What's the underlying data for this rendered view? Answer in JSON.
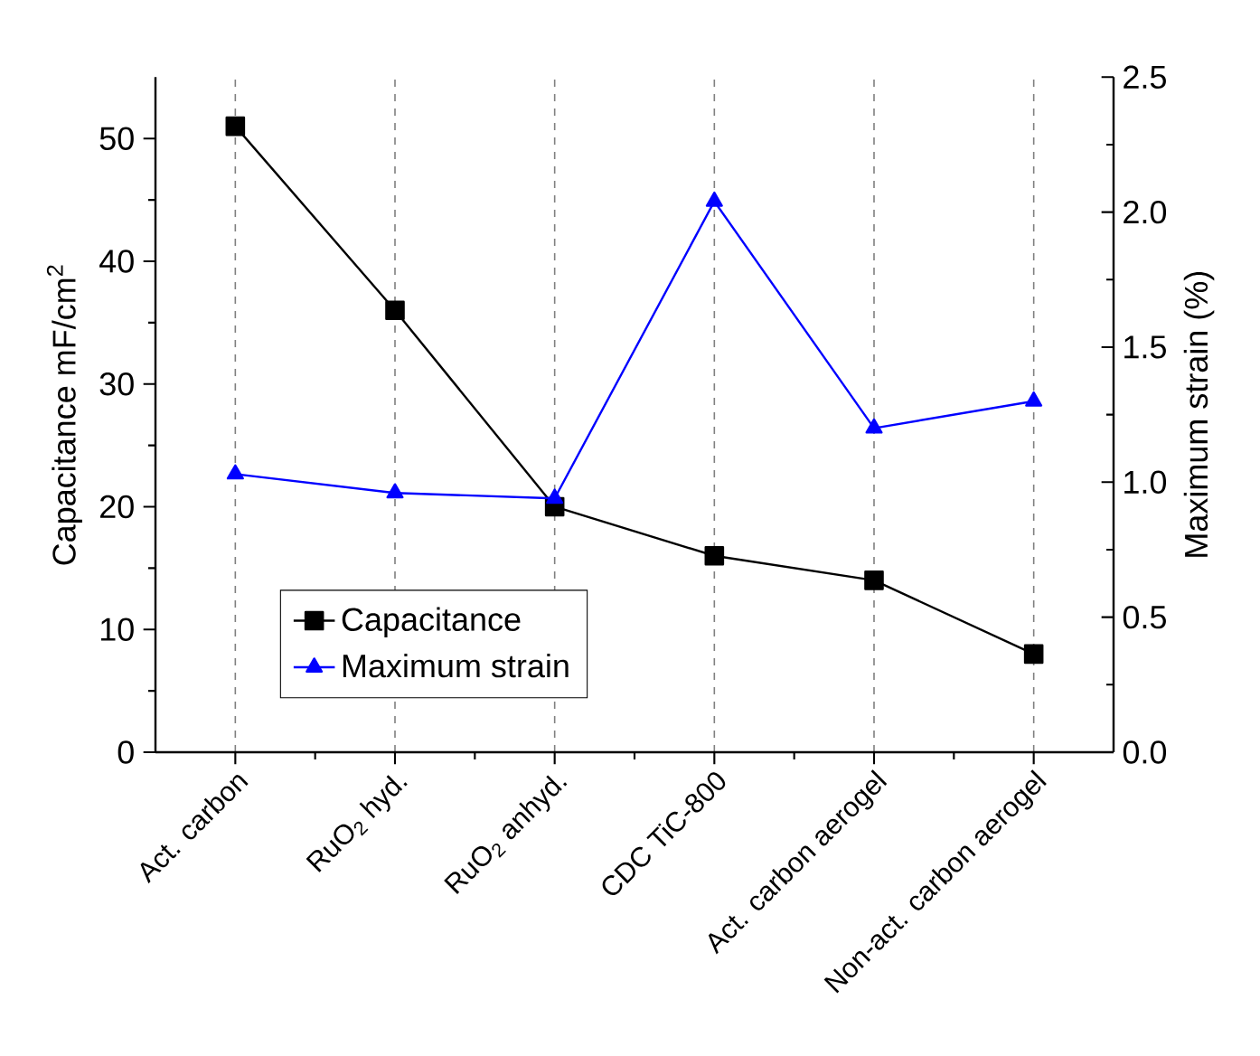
{
  "chart_data": {
    "type": "line",
    "categories": [
      "Act. carbon",
      "RuO$_{2}$ hyd.",
      "RuO$_{2}$ anhyd.",
      "CDC TiC-800",
      "Act. carbon aerogel",
      "Non-act. carbon aerogel"
    ],
    "ylabel": "Capacitance mF/cm$^{2}$",
    "y2label": "Maximum strain (%)",
    "ylim": [
      0,
      55
    ],
    "yticks": [
      0,
      10,
      20,
      30,
      40,
      50
    ],
    "y2lim": [
      0,
      2.5
    ],
    "y2ticks": [
      {
        "value": 0,
        "label": "0.0"
      },
      {
        "value": 0.5,
        "label": "0.5"
      },
      {
        "value": 1,
        "label": "1.0"
      },
      {
        "value": 1.5,
        "label": "1.5"
      },
      {
        "value": 2,
        "label": "2.0"
      },
      {
        "value": 2.5,
        "label": "2.5"
      }
    ],
    "series": [
      {
        "name": "Capacitance",
        "color": "#000000",
        "marker": "square",
        "values": [
          51,
          36,
          20,
          16,
          14,
          8
        ]
      },
      {
        "name": "Maximum strain",
        "color": "#0000ff",
        "marker": "triangle",
        "axis": "y2",
        "values": [
          1.03,
          0.96,
          0.94,
          2.04,
          1.2,
          1.3
        ]
      }
    ],
    "grid": "x",
    "legend": "bottom left",
    "line_style": "solid"
  }
}
